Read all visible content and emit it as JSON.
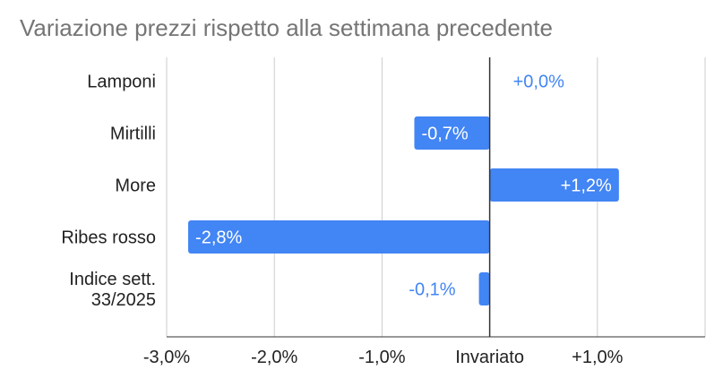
{
  "chart_data": {
    "type": "bar",
    "orientation": "horizontal",
    "title": "Variazione prezzi rispetto alla settimana precedente",
    "categories": [
      [
        "Lamponi"
      ],
      [
        "Mirtilli"
      ],
      [
        "More"
      ],
      [
        "Ribes rosso"
      ],
      [
        "Indice sett.",
        "33/2025"
      ]
    ],
    "values": [
      0.0,
      -0.7,
      1.2,
      -2.8,
      -0.1
    ],
    "value_labels": [
      "+0,0%",
      "-0,7%",
      "+1,2%",
      "-2,8%",
      "-0,1%"
    ],
    "x_ticks": [
      -3,
      -2,
      -1,
      0,
      1
    ],
    "x_tick_labels": [
      "-3,0%",
      "-2,0%",
      "-1,0%",
      "Invariato",
      "+1,0%"
    ],
    "xlim": [
      -3.0,
      2.0
    ],
    "grid": true,
    "legend": "none",
    "colors": {
      "bar": "#4285f4",
      "grid": "#cccccc",
      "zero_line": "#333333",
      "label_inside": "#ffffff",
      "label_outside": "#4285f4",
      "title": "#757575",
      "text": "#222222"
    }
  }
}
